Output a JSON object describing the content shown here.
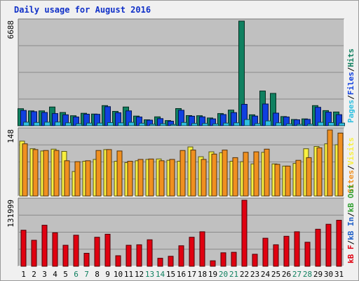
{
  "title": "Daily usage for August 2016",
  "colors": {
    "hits": "#108060",
    "files": "#1040e0",
    "pages": "#30c0e0",
    "visits": "#f8f040",
    "sites": "#f09020",
    "kb_in": "#2060c8",
    "kb_out": "#30a030",
    "kbytes": "#e00010"
  },
  "chart_data": [
    {
      "type": "bar",
      "title": "Daily usage for August 2016",
      "categories": [
        "1",
        "2",
        "3",
        "4",
        "5",
        "6",
        "7",
        "8",
        "9",
        "10",
        "11",
        "12",
        "13",
        "14",
        "15",
        "16",
        "17",
        "18",
        "19",
        "20",
        "21",
        "22",
        "23",
        "24",
        "25",
        "26",
        "27",
        "28",
        "29",
        "30",
        "31"
      ],
      "weekend_categories": [
        "6",
        "7",
        "13",
        "14",
        "20",
        "21",
        "27",
        "28"
      ],
      "ymax_label": "6688",
      "ylim": [
        0,
        6688
      ],
      "grid": true,
      "legend": "right-vertical",
      "legend_labels": {
        "pages": "Pages",
        "files": "Files",
        "hits": "Hits"
      },
      "series": [
        {
          "name": "Hits",
          "key": "hits",
          "values": [
            1090,
            950,
            950,
            1200,
            850,
            640,
            800,
            750,
            1290,
            920,
            1200,
            620,
            380,
            570,
            330,
            1100,
            650,
            640,
            500,
            780,
            1000,
            6688,
            700,
            2220,
            2070,
            590,
            400,
            440,
            1290,
            970,
            880
          ]
        },
        {
          "name": "Files",
          "key": "files",
          "values": [
            980,
            900,
            850,
            780,
            700,
            560,
            740,
            730,
            1220,
            830,
            950,
            560,
            360,
            460,
            290,
            990,
            610,
            570,
            440,
            720,
            840,
            1370,
            620,
            1390,
            810,
            560,
            380,
            410,
            1180,
            870,
            710
          ]
        },
        {
          "name": "Pages",
          "key": "pages",
          "values": [
            230,
            210,
            230,
            240,
            190,
            130,
            170,
            170,
            200,
            190,
            220,
            160,
            100,
            130,
            80,
            210,
            150,
            150,
            120,
            170,
            190,
            400,
            140,
            310,
            190,
            120,
            90,
            100,
            220,
            200,
            170
          ]
        }
      ]
    },
    {
      "type": "bar",
      "categories": [
        "1",
        "2",
        "3",
        "4",
        "5",
        "6",
        "7",
        "8",
        "9",
        "10",
        "11",
        "12",
        "13",
        "14",
        "15",
        "16",
        "17",
        "18",
        "19",
        "20",
        "21",
        "22",
        "23",
        "24",
        "25",
        "26",
        "27",
        "28",
        "29",
        "30",
        "31"
      ],
      "ymax_label": "148",
      "ylim": [
        0,
        148
      ],
      "grid": true,
      "legend": "right-vertical",
      "legend_labels": {
        "sites": "Sites",
        "visits": "Visits"
      },
      "series": [
        {
          "name": "Visits",
          "key": "visits",
          "values": [
            123,
            106,
            101,
            105,
            100,
            55,
            78,
            82,
            104,
            78,
            75,
            79,
            82,
            83,
            80,
            78,
            110,
            88,
            99,
            97,
            78,
            77,
            72,
            98,
            72,
            67,
            73,
            106,
            111,
            117,
            115
          ]
        },
        {
          "name": "Sites",
          "key": "sites",
          "values": [
            117,
            104,
            102,
            102,
            79,
            77,
            79,
            102,
            104,
            101,
            78,
            82,
            83,
            79,
            82,
            102,
            103,
            82,
            94,
            103,
            86,
            98,
            99,
            105,
            71,
            67,
            80,
            86,
            108,
            148,
            141
          ]
        }
      ]
    },
    {
      "type": "bar",
      "categories": [
        "1",
        "2",
        "3",
        "4",
        "5",
        "6",
        "7",
        "8",
        "9",
        "10",
        "11",
        "12",
        "13",
        "14",
        "15",
        "16",
        "17",
        "18",
        "19",
        "20",
        "21",
        "22",
        "23",
        "24",
        "25",
        "26",
        "27",
        "28",
        "29",
        "30",
        "31"
      ],
      "ymax_label": "131999",
      "ylim": [
        0,
        131999
      ],
      "grid": true,
      "legend": "right-vertical",
      "legend_labels": {
        "kbytes": "kB F",
        "kb_in": "kB In",
        "kb_out": "kB Out"
      },
      "series": [
        {
          "name": "kB F",
          "key": "kbytes",
          "values": [
            72000,
            52000,
            82000,
            67000,
            42000,
            62000,
            26000,
            58000,
            64000,
            21000,
            42000,
            43000,
            53000,
            16000,
            20000,
            41000,
            58000,
            69000,
            11000,
            27000,
            28000,
            131999,
            24000,
            56000,
            43000,
            60000,
            69000,
            48000,
            74000,
            84000,
            92000
          ]
        }
      ]
    }
  ]
}
